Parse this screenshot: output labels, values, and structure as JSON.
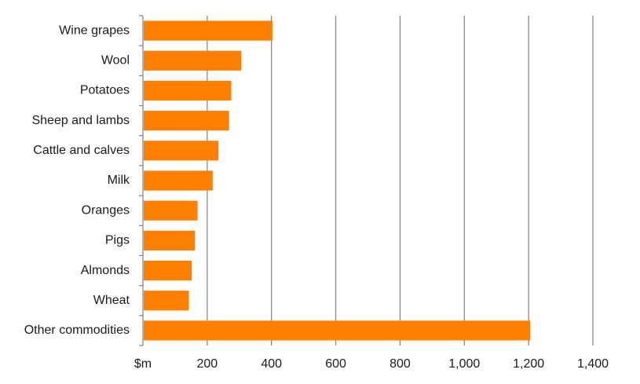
{
  "chart_data": {
    "type": "bar",
    "orientation": "horizontal",
    "categories": [
      "Wine grapes",
      "Wool",
      "Potatoes",
      "Sheep and lambs",
      "Cattle and calves",
      "Milk",
      "Oranges",
      "Pigs",
      "Almonds",
      "Wheat",
      "Other commodities"
    ],
    "values": [
      403,
      306,
      275,
      268,
      235,
      217,
      170,
      162,
      152,
      143,
      1205
    ],
    "x_ticks": [
      "$m",
      "200",
      "400",
      "600",
      "800",
      "1,000",
      "1,200",
      "1,400"
    ],
    "xlim": [
      0,
      1400
    ],
    "grid": "vertical",
    "legend": "none",
    "colors": {
      "bar": "#FF7F00",
      "grid": "#8a8a8a"
    }
  }
}
